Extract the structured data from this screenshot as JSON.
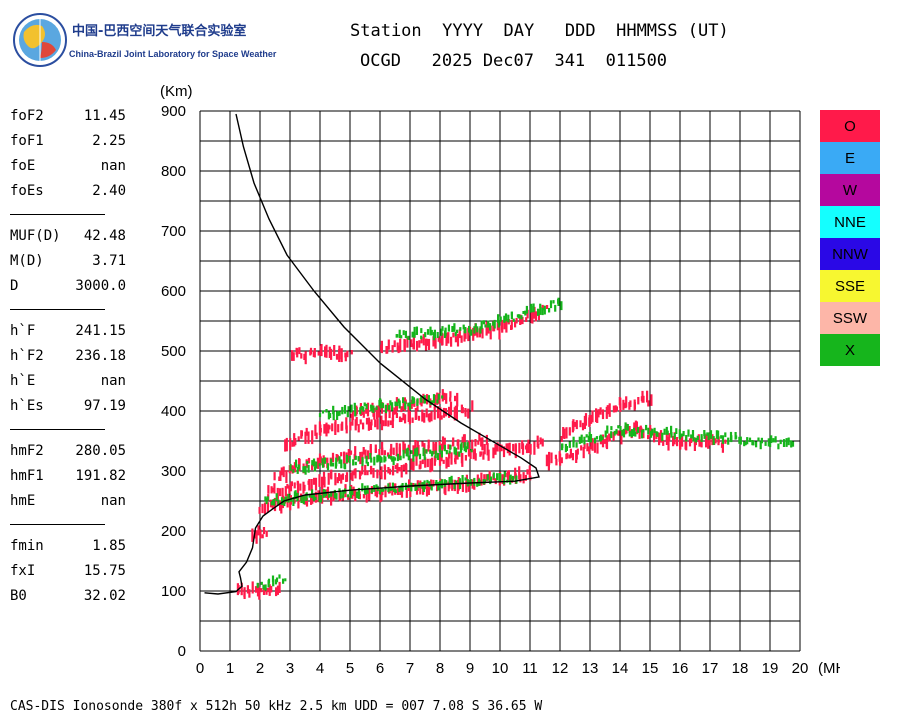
{
  "logo": {
    "text_cn": "中国-巴西空间天气联合实验室",
    "text_en": "China-Brazil Joint Laboratory for Space Weather"
  },
  "header": {
    "line1": "Station  YYYY  DAY   DDD  HHMMSS (UT)",
    "line2": "OCGD   2025 Dec07  341  011500"
  },
  "params": [
    [
      {
        "name": "foF2",
        "value": "11.45"
      },
      {
        "name": "foF1",
        "value": "2.25"
      },
      {
        "name": "foE",
        "value": "nan"
      },
      {
        "name": "foEs",
        "value": "2.40"
      }
    ],
    [
      {
        "name": "MUF(D)",
        "value": "42.48"
      },
      {
        "name": "M(D)",
        "value": "3.71"
      },
      {
        "name": "D",
        "value": "3000.0"
      }
    ],
    [
      {
        "name": "h`F",
        "value": "241.15"
      },
      {
        "name": "h`F2",
        "value": "236.18"
      },
      {
        "name": "h`E",
        "value": "nan"
      },
      {
        "name": "h`Es",
        "value": "97.19"
      }
    ],
    [
      {
        "name": "hmF2",
        "value": "280.05"
      },
      {
        "name": "hmF1",
        "value": "191.82"
      },
      {
        "name": "hmE",
        "value": "nan"
      }
    ],
    [
      {
        "name": "fmin",
        "value": "1.85"
      },
      {
        "name": "fxI",
        "value": "15.75"
      },
      {
        "name": "B0",
        "value": "32.02"
      }
    ]
  ],
  "legend": [
    {
      "label": "O",
      "color": "#ff1a4a"
    },
    {
      "label": "E",
      "color": "#3aaaf5"
    },
    {
      "label": "W",
      "color": "#b5089e"
    },
    {
      "label": "NNE",
      "color": "#14ffff"
    },
    {
      "label": "NNW",
      "color": "#2a08e6"
    },
    {
      "label": "SSE",
      "color": "#f7f730"
    },
    {
      "label": "SSW",
      "color": "#fdb6a8"
    },
    {
      "label": "X",
      "color": "#16b51c"
    }
  ],
  "footer": "CAS-DIS Ionosonde 380f x 512h 50 kHz 2.5 km UDD = 007 7.08 S 36.65 W",
  "chart_data": {
    "type": "scatter",
    "ylabel": "(Km)",
    "xlabel": "(MHz)",
    "xlim": [
      0,
      20
    ],
    "ylim": [
      0,
      900
    ],
    "xticks": [
      "0",
      "1",
      "2",
      "3",
      "4",
      "5",
      "6",
      "7",
      "8",
      "9",
      "10",
      "11",
      "12",
      "13",
      "14",
      "15",
      "16",
      "17",
      "18",
      "19",
      "20"
    ],
    "yticks": [
      "0",
      "100",
      "200",
      "300",
      "400",
      "500",
      "600",
      "700",
      "800",
      "900"
    ],
    "grid": true,
    "profile": {
      "name": "",
      "points": [
        [
          0.15,
          97
        ],
        [
          0.6,
          95
        ],
        [
          1.2,
          99
        ],
        [
          1.4,
          108
        ],
        [
          1.35,
          122
        ],
        [
          1.3,
          132
        ],
        [
          1.55,
          148
        ],
        [
          1.75,
          172
        ],
        [
          1.85,
          205
        ],
        [
          2.1,
          225
        ],
        [
          2.4,
          236
        ],
        [
          2.8,
          250
        ],
        [
          3.5,
          260
        ],
        [
          5,
          268
        ],
        [
          7,
          275
        ],
        [
          9,
          280
        ],
        [
          10.5,
          283
        ],
        [
          11.3,
          290
        ],
        [
          11.2,
          305
        ],
        [
          10.7,
          322
        ],
        [
          9.8,
          348
        ],
        [
          8.7,
          380
        ],
        [
          7.5,
          420
        ],
        [
          6,
          480
        ],
        [
          4.8,
          540
        ],
        [
          3.8,
          600
        ],
        [
          2.9,
          660
        ],
        [
          2.3,
          720
        ],
        [
          1.8,
          780
        ],
        [
          1.45,
          840
        ],
        [
          1.2,
          895
        ]
      ]
    },
    "traces": [
      {
        "name": "O",
        "color": "#ff1a4a",
        "segments": [
          [
            [
              2.0,
              240
            ],
            [
              4,
              257
            ],
            [
              6,
              266
            ],
            [
              8,
              275
            ],
            [
              10,
              287
            ],
            [
              11,
              295
            ]
          ],
          [
            [
              2.2,
              262
            ],
            [
              4,
              285
            ],
            [
              6,
              300
            ],
            [
              8,
              318
            ],
            [
              10,
              335
            ],
            [
              11.4,
              345
            ]
          ],
          [
            [
              2.5,
              290
            ],
            [
              4,
              318
            ],
            [
              6,
              332
            ],
            [
              8,
              342
            ],
            [
              9.5,
              352
            ]
          ],
          [
            [
              2.8,
              345
            ],
            [
              4,
              368
            ],
            [
              6,
              383
            ],
            [
              8,
              395
            ],
            [
              9,
              402
            ]
          ],
          [
            [
              5.0,
              395
            ],
            [
              7,
              410
            ],
            [
              8.5,
              425
            ]
          ],
          [
            [
              3.0,
              495
            ],
            [
              5,
              495
            ]
          ],
          [
            [
              6.0,
              505
            ],
            [
              8,
              518
            ],
            [
              10,
              538
            ],
            [
              11.5,
              570
            ]
          ],
          [
            [
              1.7,
              195
            ],
            [
              2.2,
              195
            ]
          ],
          [
            [
              1.2,
              100
            ],
            [
              2.6,
              105
            ]
          ],
          [
            [
              11.5,
              315
            ],
            [
              12.5,
              330
            ],
            [
              13.5,
              350
            ],
            [
              14.5,
              370
            ],
            [
              15.5,
              350
            ],
            [
              16.5,
              350
            ],
            [
              17.5,
              345
            ]
          ],
          [
            [
              12,
              360
            ],
            [
              13,
              385
            ],
            [
              14,
              410
            ],
            [
              15,
              420
            ]
          ]
        ]
      },
      {
        "name": "X",
        "color": "#16b51c",
        "segments": [
          [
            [
              2.1,
              250
            ],
            [
              5,
              265
            ],
            [
              8,
              278
            ],
            [
              10.5,
              290
            ]
          ],
          [
            [
              3.0,
              305
            ],
            [
              6,
              320
            ],
            [
              9,
              337
            ]
          ],
          [
            [
              4.0,
              395
            ],
            [
              6,
              408
            ],
            [
              8,
              420
            ]
          ],
          [
            [
              6.5,
              525
            ],
            [
              9,
              535
            ],
            [
              12,
              580
            ]
          ],
          [
            [
              1.9,
              110
            ],
            [
              2.8,
              120
            ]
          ],
          [
            [
              12,
              340
            ],
            [
              14,
              370
            ],
            [
              16,
              360
            ],
            [
              19.7,
              345
            ]
          ]
        ]
      }
    ]
  }
}
